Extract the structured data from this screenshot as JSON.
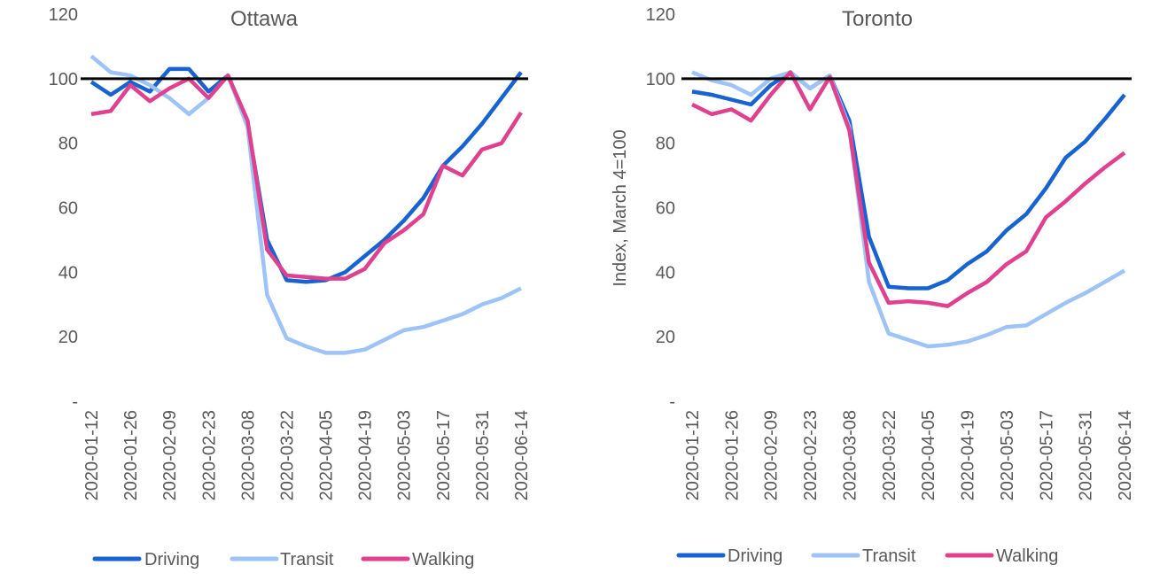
{
  "colors": {
    "Driving": "#1763d1",
    "Transit": "#9dc3f7",
    "Walking": "#e0418f",
    "baseline": "#000000",
    "text": "#595959"
  },
  "chart_data": [
    {
      "type": "line",
      "title": "Ottawa",
      "xlabel": "",
      "ylabel": "",
      "ylim": [
        0,
        120
      ],
      "ytick_labels": [
        "-",
        "20",
        "40",
        "60",
        "80",
        "100",
        "120"
      ],
      "xtick_labels": [
        "2020-01-12",
        "2020-01-26",
        "2020-02-09",
        "2020-02-23",
        "2020-03-08",
        "2020-03-22",
        "2020-04-05",
        "2020-04-19",
        "2020-05-03",
        "2020-05-17",
        "2020-05-31",
        "2020-06-14"
      ],
      "baseline": 100,
      "series": [
        {
          "name": "Driving",
          "values": [
            99,
            95,
            99,
            96,
            103,
            103,
            96,
            101,
            86,
            50,
            37.5,
            37,
            37.5,
            40,
            45,
            50,
            56,
            63,
            73,
            79,
            86,
            94,
            102
          ]
        },
        {
          "name": "Transit",
          "values": [
            107,
            102,
            101,
            98,
            94,
            89,
            94,
            101,
            85,
            33,
            19.5,
            17,
            15,
            15,
            16,
            19,
            22,
            23,
            25,
            27,
            30,
            32,
            35
          ]
        },
        {
          "name": "Walking",
          "values": [
            89,
            90,
            98,
            93,
            97,
            100,
            94,
            101,
            87,
            47,
            39,
            38.5,
            38,
            38,
            41,
            49,
            53,
            58,
            73,
            70,
            78,
            80,
            89.5
          ]
        }
      ]
    },
    {
      "type": "line",
      "title": "Toronto",
      "xlabel": "",
      "ylabel": "Index, March 4=100",
      "ylim": [
        0,
        120
      ],
      "ytick_labels": [
        "-",
        "20",
        "40",
        "60",
        "80",
        "100",
        "120"
      ],
      "xtick_labels": [
        "2020-01-12",
        "2020-01-26",
        "2020-02-09",
        "2020-02-23",
        "2020-03-08",
        "2020-03-22",
        "2020-04-05",
        "2020-04-19",
        "2020-05-03",
        "2020-05-17",
        "2020-05-31",
        "2020-06-14"
      ],
      "baseline": 100,
      "series": [
        {
          "name": "Driving",
          "values": [
            96,
            95,
            93.5,
            92,
            98,
            102,
            97,
            101,
            87,
            51,
            35.5,
            35,
            35,
            37.5,
            42.5,
            46.5,
            53,
            58,
            66,
            75.5,
            80.5,
            87.5,
            95
          ]
        },
        {
          "name": "Transit",
          "values": [
            102,
            99.5,
            98,
            95,
            100,
            102,
            97,
            101,
            85,
            37,
            21,
            19,
            17,
            17.5,
            18.5,
            20.5,
            23,
            23.5,
            27,
            30.5,
            33.5,
            37,
            40.5
          ]
        },
        {
          "name": "Walking",
          "values": [
            92,
            89,
            90.5,
            87,
            95,
            102,
            90.5,
            100.5,
            84,
            43,
            30.5,
            31,
            30.5,
            29.5,
            33.5,
            37,
            42.5,
            46.5,
            57,
            62,
            67.5,
            72.5,
            77
          ]
        }
      ]
    }
  ]
}
